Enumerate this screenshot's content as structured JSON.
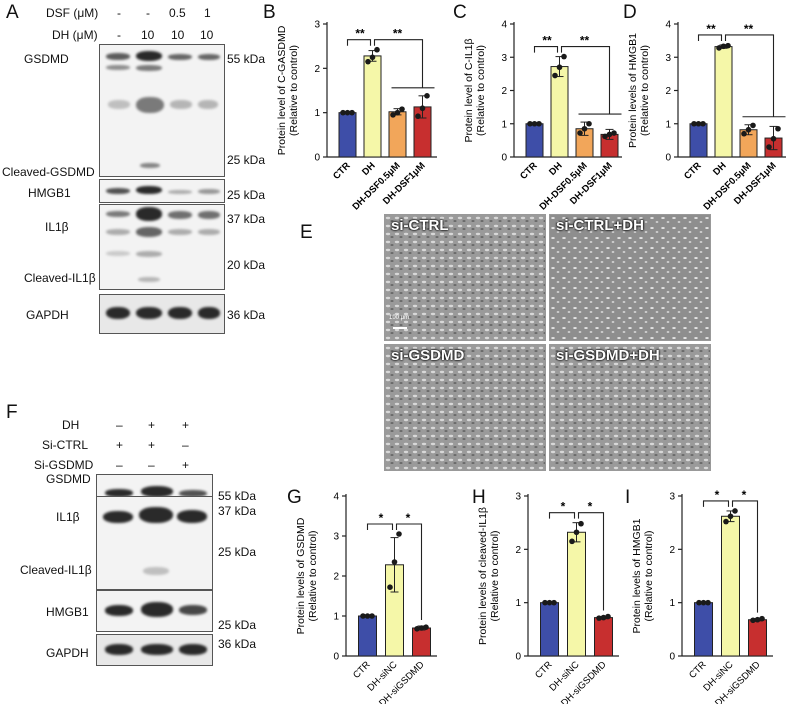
{
  "panels": {
    "A": "A",
    "B": "B",
    "C": "C",
    "D": "D",
    "E": "E",
    "F": "F",
    "G": "G",
    "H": "H",
    "I": "I"
  },
  "blot_A": {
    "header_rows": [
      {
        "label": "DSF (μM)",
        "values": [
          "-",
          "-",
          "0.5",
          "1"
        ]
      },
      {
        "label": "DH (μM)",
        "values": [
          "-",
          "10",
          "10",
          "10"
        ]
      }
    ],
    "left_labels": [
      "GSDMD",
      "Cleaved-GSDMD",
      "HMGB1",
      "IL1β",
      "Cleaved-IL1β",
      "GAPDH"
    ],
    "markers": [
      "55 kDa",
      "25 kDa",
      "25 kDa",
      "37 kDa",
      "20 kDa",
      "36 kDa"
    ]
  },
  "blot_F": {
    "header_rows": [
      {
        "label": "DH",
        "values": [
          "–",
          "+",
          "+"
        ]
      },
      {
        "label": "Si-CTRL",
        "values": [
          "+",
          "+",
          "–"
        ]
      },
      {
        "label": "Si-GSDMD",
        "values": [
          "–",
          "–",
          "+"
        ]
      }
    ],
    "left_labels": [
      "GSDMD",
      "IL1β",
      "Cleaved-IL1β",
      "HMGB1",
      "GAPDH"
    ],
    "markers": [
      "55 kDa",
      "37 kDa",
      "25 kDa",
      "25 kDa",
      "36 kDa"
    ]
  },
  "micro_E": {
    "labels": [
      "si-CTRL",
      "si-CTRL+DH",
      "si-GSDMD",
      "si-GSDMD+DH"
    ],
    "scale_bar": "100 μm"
  },
  "chart_data": [
    {
      "panel": "B",
      "type": "bar",
      "ylabel_lines": [
        "Protein level of C-GASDMD",
        "(Relative to control)"
      ],
      "categories": [
        "CTR",
        "DH",
        "DH-DSF0.5μM",
        "DH-DSF1μM"
      ],
      "values": [
        1.0,
        2.28,
        1.02,
        1.13
      ],
      "errors": [
        0.0,
        0.12,
        0.07,
        0.25
      ],
      "points": [
        [
          1.0,
          1.0,
          1.0
        ],
        [
          2.15,
          2.25,
          2.42
        ],
        [
          0.95,
          1.0,
          1.08
        ],
        [
          0.92,
          1.1,
          1.38
        ]
      ],
      "ylim": [
        0,
        3
      ],
      "yticks": [
        0,
        1,
        2,
        3
      ],
      "colors": [
        "#3e4ea8",
        "#f5f7a8",
        "#f2a65a",
        "#c72f2f"
      ],
      "significance": [
        "**",
        "**"
      ]
    },
    {
      "panel": "C",
      "type": "bar",
      "ylabel_lines": [
        "Protein level of C-IL1β",
        "(Relative to control)"
      ],
      "categories": [
        "CTR",
        "DH",
        "DH-DSF0.5μM",
        "DH-DSF1μM"
      ],
      "values": [
        1.0,
        2.72,
        0.85,
        0.68
      ],
      "errors": [
        0.0,
        0.3,
        0.2,
        0.15
      ],
      "points": [
        [
          1.0,
          1.0,
          1.0
        ],
        [
          2.45,
          2.7,
          3.02
        ],
        [
          0.72,
          0.85,
          1.0
        ],
        [
          0.62,
          0.68,
          0.72
        ]
      ],
      "ylim": [
        0,
        4
      ],
      "yticks": [
        0,
        1,
        2,
        3,
        4
      ],
      "colors": [
        "#3e4ea8",
        "#f5f7a8",
        "#f2a65a",
        "#c72f2f"
      ],
      "significance": [
        "**",
        "**"
      ]
    },
    {
      "panel": "D",
      "type": "bar",
      "ylabel_lines": [
        "Protein levels of HMGB1",
        "(Relative to control)"
      ],
      "categories": [
        "CTR",
        "DH",
        "DH-DSF0.5μM",
        "DH-DSF1μM"
      ],
      "values": [
        1.0,
        3.32,
        0.82,
        0.57
      ],
      "errors": [
        0.0,
        0.05,
        0.15,
        0.35
      ],
      "points": [
        [
          1.0,
          1.0,
          1.0
        ],
        [
          3.28,
          3.33,
          3.35
        ],
        [
          0.7,
          0.82,
          0.95
        ],
        [
          0.3,
          0.55,
          0.85
        ]
      ],
      "ylim": [
        0,
        4
      ],
      "yticks": [
        0,
        1,
        2,
        3,
        4
      ],
      "colors": [
        "#3e4ea8",
        "#f5f7a8",
        "#f2a65a",
        "#c72f2f"
      ],
      "significance": [
        "**",
        "**"
      ]
    },
    {
      "panel": "G",
      "type": "bar",
      "ylabel_lines": [
        "Protein levels of GSDMD",
        "(Relative to control)"
      ],
      "categories": [
        "CTR",
        "DH-siNC",
        "DH-siGSDMD"
      ],
      "values": [
        1.0,
        2.28,
        0.7
      ],
      "errors": [
        0.0,
        0.68,
        0.05
      ],
      "points": [
        [
          1.0,
          1.0,
          1.0
        ],
        [
          1.72,
          2.35,
          3.05
        ],
        [
          0.68,
          0.7,
          0.72
        ]
      ],
      "ylim": [
        0,
        4
      ],
      "yticks": [
        0,
        1,
        2,
        3,
        4
      ],
      "colors": [
        "#3e4ea8",
        "#f5f7a8",
        "#c72f2f"
      ],
      "significance": [
        "*",
        "*"
      ]
    },
    {
      "panel": "H",
      "type": "bar",
      "ylabel_lines": [
        "Protein levels of cleaved-IL1β",
        "(Relative to control)"
      ],
      "categories": [
        "CTR",
        "DH-siNC",
        "DH-siGSDMD"
      ],
      "values": [
        1.0,
        2.32,
        0.72
      ],
      "errors": [
        0.0,
        0.18,
        0.02
      ],
      "points": [
        [
          1.0,
          1.0,
          1.0
        ],
        [
          2.15,
          2.32,
          2.48
        ],
        [
          0.71,
          0.72,
          0.74
        ]
      ],
      "ylim": [
        0,
        3
      ],
      "yticks": [
        0,
        1,
        2,
        3
      ],
      "colors": [
        "#3e4ea8",
        "#f5f7a8",
        "#c72f2f"
      ],
      "significance": [
        "*",
        "*"
      ]
    },
    {
      "panel": "I",
      "type": "bar",
      "ylabel_lines": [
        "Protein levels of HMGB1",
        "(Relative to control)"
      ],
      "categories": [
        "CTR",
        "DH-siNC",
        "DH-siGSDMD"
      ],
      "values": [
        1.0,
        2.62,
        0.68
      ],
      "errors": [
        0.0,
        0.1,
        0.02
      ],
      "points": [
        [
          1.0,
          1.0,
          1.0
        ],
        [
          2.52,
          2.62,
          2.72
        ],
        [
          0.67,
          0.68,
          0.7
        ]
      ],
      "ylim": [
        0,
        3
      ],
      "yticks": [
        0,
        1,
        2,
        3
      ],
      "colors": [
        "#3e4ea8",
        "#f5f7a8",
        "#c72f2f"
      ],
      "significance": [
        "*",
        "*"
      ]
    }
  ]
}
